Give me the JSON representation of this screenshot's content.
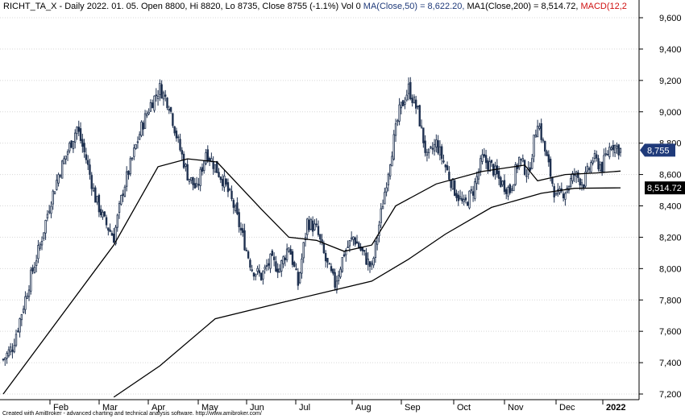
{
  "header": {
    "ticker_info": "RICHT_TA_X - Daily 2022. 01. 05. Open 8800, Hi 8820, Lo 8735, Close 8755 (-1.1%) Vol 0",
    "ma50_label": "MA(Close,50) = 8,622.20,",
    "ma200_label": "MA1(Close,200) = 8,514.72,",
    "macd_label": "MACD(12,2"
  },
  "footer": {
    "text": "Created with AmiBroker - advanced charting and technical analysis software. http://www.amibroker.com/"
  },
  "colors": {
    "candle": "#1f3150",
    "ma_line": "#000000",
    "grid": "#d8d8d8",
    "last_price_bg": "#1f3a7a",
    "ma_label_bg": "#000000"
  },
  "chart_data": {
    "type": "candlestick",
    "y_ticks": [
      "9,600",
      "9,400",
      "9,200",
      "9,000",
      "8,800",
      "8,600",
      "8,400",
      "8,200",
      "8,000",
      "7,800",
      "7,600",
      "7,400",
      "7,200"
    ],
    "x_labels": [
      "Feb",
      "Mar",
      "Apr",
      "May",
      "Jun",
      "Jul",
      "Aug",
      "Sep",
      "Oct",
      "Nov",
      "Dec",
      "2022"
    ],
    "ylim": [
      7180,
      9660
    ],
    "last_price_label": "8,755",
    "ma200_value_label": "8,514.72",
    "grid": true,
    "close_path": [
      [
        0,
        7420
      ],
      [
        5,
        7500
      ],
      [
        10,
        7720
      ],
      [
        15,
        7950
      ],
      [
        20,
        8150
      ],
      [
        25,
        8400
      ],
      [
        30,
        8600
      ],
      [
        35,
        8750
      ],
      [
        40,
        8900
      ],
      [
        45,
        8700
      ],
      [
        50,
        8450
      ],
      [
        55,
        8300
      ],
      [
        60,
        8200
      ],
      [
        65,
        8500
      ],
      [
        70,
        8700
      ],
      [
        75,
        8900
      ],
      [
        80,
        9050
      ],
      [
        85,
        9150
      ],
      [
        90,
        9050
      ],
      [
        95,
        8800
      ],
      [
        100,
        8600
      ],
      [
        105,
        8500
      ],
      [
        110,
        8750
      ],
      [
        115,
        8650
      ],
      [
        120,
        8550
      ],
      [
        125,
        8400
      ],
      [
        130,
        8200
      ],
      [
        135,
        8000
      ],
      [
        140,
        7950
      ],
      [
        145,
        8050
      ],
      [
        150,
        8000
      ],
      [
        155,
        8150
      ],
      [
        160,
        7900
      ],
      [
        165,
        8300
      ],
      [
        170,
        8250
      ],
      [
        175,
        8050
      ],
      [
        180,
        7900
      ],
      [
        185,
        8100
      ],
      [
        190,
        8200
      ],
      [
        195,
        8100
      ],
      [
        200,
        8000
      ],
      [
        205,
        8350
      ],
      [
        210,
        8700
      ],
      [
        215,
        9000
      ],
      [
        220,
        9150
      ],
      [
        225,
        9000
      ],
      [
        230,
        8700
      ],
      [
        235,
        8800
      ],
      [
        240,
        8650
      ],
      [
        245,
        8500
      ],
      [
        250,
        8400
      ],
      [
        255,
        8500
      ],
      [
        260,
        8700
      ],
      [
        265,
        8650
      ],
      [
        270,
        8550
      ],
      [
        275,
        8500
      ],
      [
        280,
        8700
      ],
      [
        285,
        8600
      ],
      [
        290,
        8950
      ],
      [
        295,
        8700
      ],
      [
        300,
        8450
      ],
      [
        305,
        8500
      ],
      [
        310,
        8600
      ],
      [
        315,
        8550
      ],
      [
        320,
        8700
      ],
      [
        325,
        8650
      ],
      [
        330,
        8800
      ],
      [
        335,
        8755
      ]
    ],
    "ma50": [
      [
        0,
        7200
      ],
      [
        60,
        8150
      ],
      [
        84,
        8650
      ],
      [
        100,
        8700
      ],
      [
        116,
        8680
      ],
      [
        140,
        8380
      ],
      [
        155,
        8200
      ],
      [
        170,
        8180
      ],
      [
        185,
        8110
      ],
      [
        200,
        8150
      ],
      [
        213,
        8400
      ],
      [
        235,
        8540
      ],
      [
        260,
        8620
      ],
      [
        283,
        8660
      ],
      [
        290,
        8560
      ],
      [
        305,
        8600
      ],
      [
        322,
        8610
      ],
      [
        335,
        8622
      ]
    ],
    "ma200": [
      [
        60,
        7180
      ],
      [
        85,
        7380
      ],
      [
        115,
        7680
      ],
      [
        150,
        7780
      ],
      [
        175,
        7850
      ],
      [
        200,
        7920
      ],
      [
        220,
        8060
      ],
      [
        240,
        8220
      ],
      [
        265,
        8390
      ],
      [
        292,
        8480
      ],
      [
        310,
        8512
      ],
      [
        335,
        8515
      ]
    ],
    "x_total": 335
  }
}
